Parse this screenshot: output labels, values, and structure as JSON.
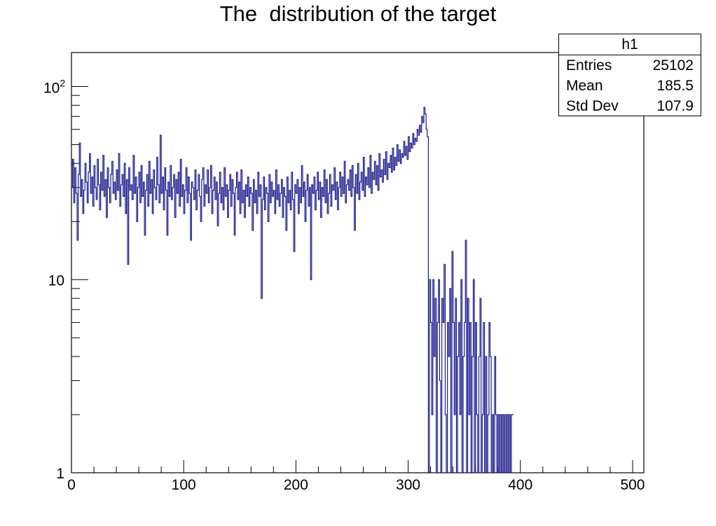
{
  "title": "The  distribution of the target",
  "stats": {
    "name": "h1",
    "rows": [
      {
        "label": "Entries",
        "value": "25102"
      },
      {
        "label": "Mean",
        "value": "185.5"
      },
      {
        "label": "Std Dev",
        "value": "107.9"
      }
    ]
  },
  "colors": {
    "line": "#1a1a8c",
    "fill": "#3a3ab0"
  },
  "chart_data": {
    "type": "histogram",
    "title": "The  distribution of the target",
    "xlabel": "",
    "ylabel": "",
    "xlim": [
      0,
      510
    ],
    "ylim": [
      1,
      150
    ],
    "log_y": true,
    "grid": false,
    "x_ticks": [
      0,
      100,
      200,
      300,
      400,
      500
    ],
    "x_tick_labels": [
      "0",
      "100",
      "200",
      "300",
      "400",
      "500"
    ],
    "y_ticks": [
      1,
      10,
      100
    ],
    "y_tick_labels": [
      "1",
      "10",
      "10^2"
    ],
    "bin_width": 1,
    "bins_start": 0,
    "counts": [
      30,
      42,
      25,
      38,
      28,
      16,
      35,
      51,
      27,
      33,
      22,
      29,
      40,
      32,
      25,
      36,
      45,
      28,
      34,
      24,
      39,
      30,
      26,
      42,
      31,
      23,
      36,
      29,
      44,
      27,
      33,
      21,
      38,
      30,
      25,
      35,
      41,
      28,
      32,
      26,
      37,
      29,
      45,
      24,
      31,
      35,
      27,
      40,
      22,
      33,
      12,
      38,
      29,
      31,
      26,
      44,
      28,
      34,
      20,
      30,
      36,
      25,
      39,
      27,
      32,
      17,
      29,
      35,
      24,
      41,
      28,
      33,
      22,
      37,
      30,
      26,
      43,
      31,
      25,
      56,
      28,
      34,
      23,
      38,
      29,
      17,
      32,
      27,
      39,
      26,
      30,
      35,
      21,
      33,
      28,
      36,
      24,
      42,
      27,
      31,
      22,
      29,
      38,
      25,
      34,
      28,
      16,
      32,
      30,
      26,
      37,
      23,
      29,
      35,
      27,
      20,
      33,
      38,
      24,
      31,
      28,
      37,
      25,
      30,
      39,
      22,
      29,
      34,
      26,
      32,
      19,
      28,
      36,
      25,
      30,
      23,
      38,
      27,
      31,
      21,
      29,
      35,
      24,
      33,
      28,
      17,
      30,
      36,
      26,
      32,
      22,
      37,
      25,
      29,
      21,
      31,
      27,
      34,
      24,
      30,
      28,
      18,
      33,
      25,
      29,
      22,
      36,
      27,
      31,
      8,
      26,
      34,
      23,
      30,
      28,
      20,
      35,
      25,
      32,
      27,
      29,
      22,
      37,
      26,
      31,
      24,
      28,
      33,
      21,
      30,
      27,
      18,
      34,
      25,
      29,
      23,
      36,
      26,
      14,
      31,
      28,
      33,
      22,
      30,
      25,
      39,
      27,
      32,
      20,
      29,
      35,
      24,
      30,
      10,
      31,
      28,
      34,
      23,
      29,
      36,
      26,
      32,
      21,
      30,
      27,
      37,
      25,
      33,
      22,
      28,
      35,
      24,
      31,
      29,
      38,
      26,
      32,
      23,
      30,
      36,
      27,
      34,
      28,
      41,
      25,
      31,
      33,
      29,
      37,
      27,
      39,
      30,
      18,
      35,
      28,
      40,
      26,
      32,
      36,
      29,
      43,
      27,
      34,
      31,
      38,
      30,
      44,
      28,
      36,
      33,
      41,
      31,
      39,
      29,
      45,
      34,
      37,
      32,
      42,
      35,
      46,
      33,
      40,
      38,
      44,
      36,
      48,
      37,
      43,
      39,
      50,
      41,
      47,
      40,
      45,
      43,
      52,
      44,
      49,
      42,
      55,
      46,
      51,
      48,
      57,
      50,
      54,
      52,
      60,
      56,
      63,
      58,
      70,
      65,
      78,
      72,
      60,
      55,
      1,
      10,
      6,
      2,
      10,
      4,
      8,
      1,
      6,
      10,
      3,
      1,
      8,
      6,
      12,
      2,
      1,
      6,
      4,
      9,
      1,
      14,
      6,
      2,
      8,
      1,
      4,
      6,
      2,
      10,
      1,
      4,
      6,
      16,
      1,
      8,
      2,
      6,
      1,
      4,
      10,
      1,
      6,
      2,
      1,
      4,
      8,
      1,
      2,
      6,
      1,
      4,
      1,
      2,
      6,
      4,
      1,
      2,
      1,
      4,
      2,
      1,
      2,
      1,
      2,
      1,
      2,
      1,
      2,
      1,
      2,
      1,
      2,
      1,
      2,
      2
    ]
  }
}
